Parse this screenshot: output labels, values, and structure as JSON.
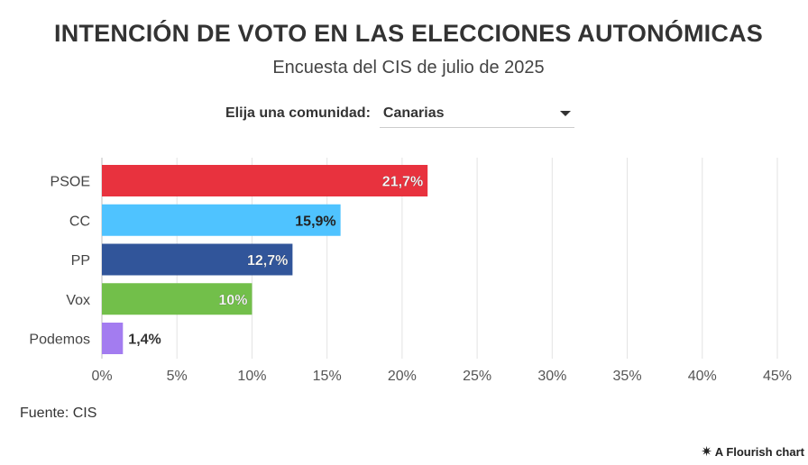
{
  "title": "INTENCIÓN DE VOTO EN LAS ELECCIONES AUTONÓMICAS",
  "subtitle": "Encuesta del CIS de julio de 2025",
  "selector": {
    "label": "Elija una comunidad:",
    "value": "Canarias"
  },
  "source": "Fuente: CIS",
  "credit": {
    "icon": "flourish-star-icon",
    "text": "A Flourish chart"
  },
  "chart_data": {
    "type": "bar",
    "orientation": "horizontal",
    "categories": [
      "PSOE",
      "CC",
      "PP",
      "Vox",
      "Podemos"
    ],
    "values": [
      21.7,
      15.9,
      12.7,
      10,
      1.4
    ],
    "value_labels": [
      "21,7%",
      "15,9%",
      "12,7%",
      "10%",
      "1,4%"
    ],
    "colors": [
      "#e8323e",
      "#4fc3ff",
      "#31559a",
      "#72bf4a",
      "#a37cf0"
    ],
    "xlim": [
      0,
      45
    ],
    "xticks": [
      0,
      5,
      10,
      15,
      20,
      25,
      30,
      35,
      40,
      45
    ],
    "xtick_labels": [
      "0%",
      "5%",
      "10%",
      "15%",
      "20%",
      "25%",
      "30%",
      "35%",
      "40%",
      "45%"
    ],
    "grid": true,
    "title": "INTENCIÓN DE VOTO EN LAS ELECCIONES AUTONÓMICAS"
  }
}
